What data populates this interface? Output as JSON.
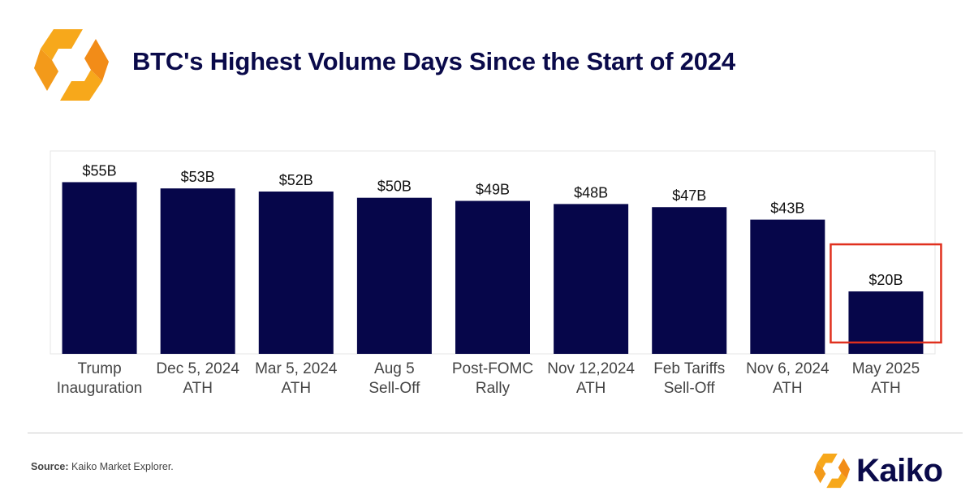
{
  "header": {
    "title": "BTC's Highest Volume Days Since the Start of 2024"
  },
  "chart_data": {
    "type": "bar",
    "title": "BTC's Highest Volume Days Since the Start of 2024",
    "categories": [
      [
        "Trump",
        "Inauguration"
      ],
      [
        "Dec 5, 2024",
        "ATH"
      ],
      [
        "Mar 5, 2024",
        "ATH"
      ],
      [
        "Aug 5",
        "Sell-Off"
      ],
      [
        "Post-FOMC",
        "Rally"
      ],
      [
        "Nov 12,2024",
        "ATH"
      ],
      [
        "Feb Tariffs",
        "Sell-Off"
      ],
      [
        "Nov 6, 2024",
        "ATH"
      ],
      [
        "May 2025",
        "ATH"
      ]
    ],
    "values": [
      55,
      53,
      52,
      50,
      49,
      48,
      47,
      43,
      20
    ],
    "data_labels": [
      "$55B",
      "$53B",
      "$52B",
      "$50B",
      "$49B",
      "$48B",
      "$47B",
      "$43B",
      "$20B"
    ],
    "unit": "billion USD",
    "ylim": [
      0,
      65
    ],
    "grid": false,
    "legend": "none",
    "bar_color": "#06064a",
    "highlight": {
      "index": 8,
      "color": "#e0301e"
    }
  },
  "footer": {
    "source_key": "Source:",
    "source_text": " Kaiko Market Explorer.",
    "brand_name": "Kaiko"
  },
  "colors": {
    "accent_orange": "#f7a81b",
    "accent_orange_dark": "#f28c18",
    "title_navy": "#0a0a4a"
  },
  "icons": {
    "top_logo": "kaiko-logo-icon",
    "brand_logo": "kaiko-logo-icon"
  }
}
